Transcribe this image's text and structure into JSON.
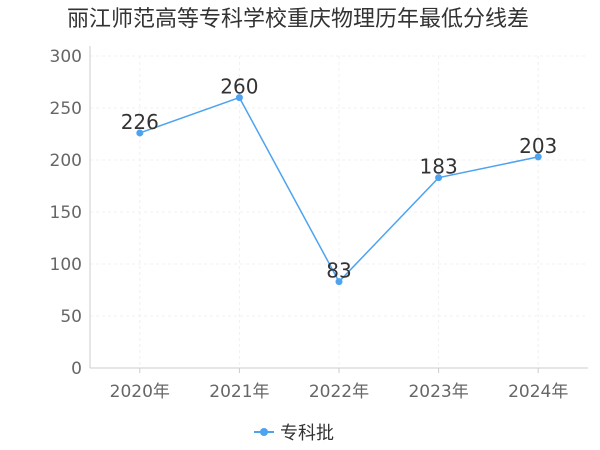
{
  "chart_data": {
    "type": "line",
    "title": "丽江师范高等专科学校重庆物理历年最低分线差",
    "categories": [
      "2020年",
      "2021年",
      "2022年",
      "2023年",
      "2024年"
    ],
    "series": [
      {
        "name": "专科批",
        "values": [
          226,
          260,
          83,
          183,
          203
        ]
      }
    ],
    "ylim": [
      0,
      300
    ],
    "yticks": [
      0,
      50,
      100,
      150,
      200,
      250,
      300
    ],
    "xlabel": "",
    "ylabel": "",
    "grid": true,
    "legend": "bottom-center",
    "colors": {
      "series": "#4da3f0",
      "axis": "#cccccc",
      "grid": "#f0f0f0"
    }
  }
}
